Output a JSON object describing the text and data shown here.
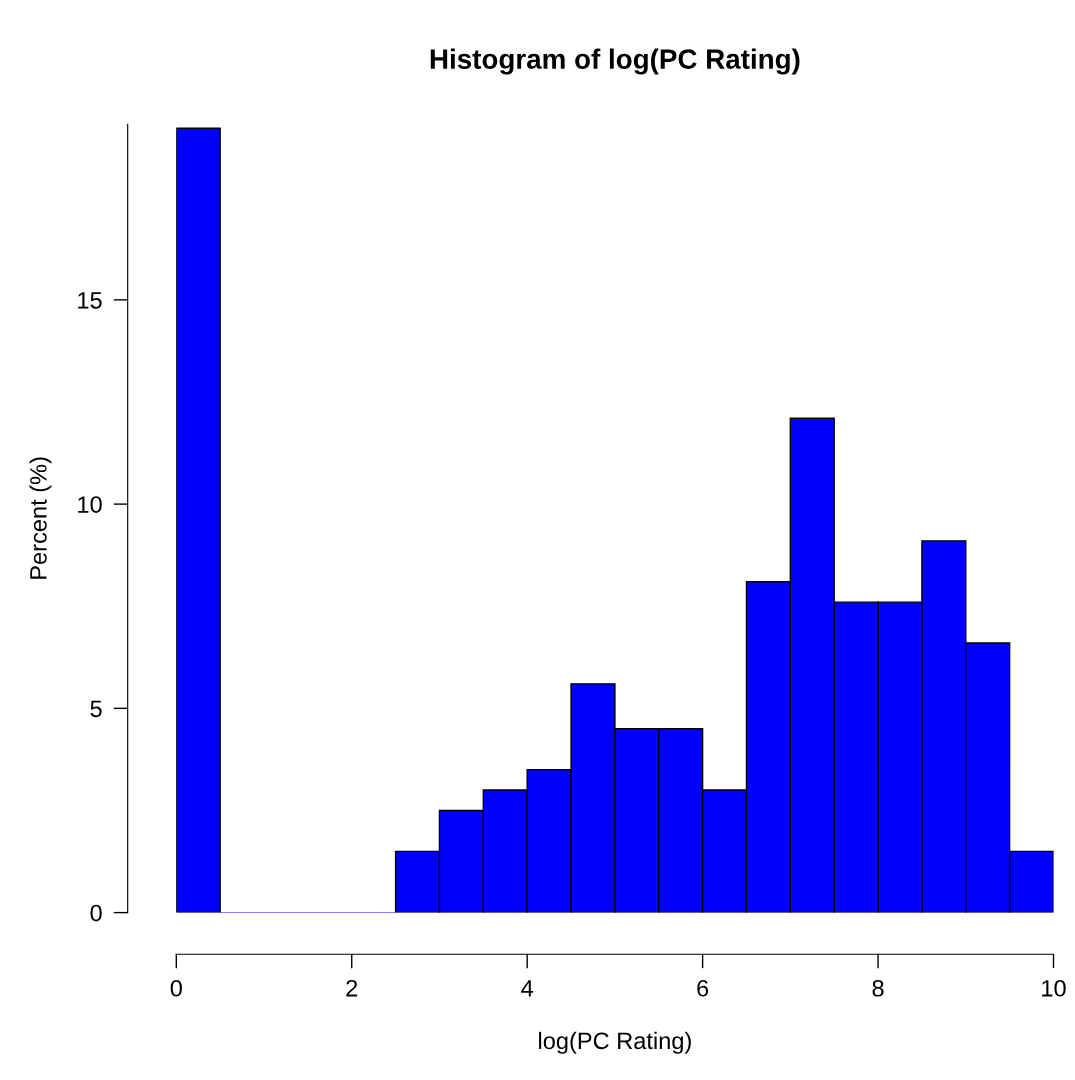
{
  "chart_data": {
    "type": "histogram",
    "title": "Histogram of log(PC Rating)",
    "xlabel": "log(PC Rating)",
    "ylabel": "Percent (%)",
    "bins": [
      0,
      0.5,
      1,
      1.5,
      2,
      2.5,
      3,
      3.5,
      4,
      4.5,
      5,
      5.5,
      6,
      6.5,
      7,
      7.5,
      8,
      8.5,
      9,
      9.5,
      10
    ],
    "values": [
      19.2,
      0,
      0,
      0,
      0,
      1.5,
      2.5,
      3.0,
      3.5,
      5.6,
      4.5,
      4.5,
      3.0,
      8.1,
      12.1,
      7.6,
      7.6,
      9.1,
      6.6,
      1.5
    ],
    "color": "#0000ff",
    "xlim": [
      0,
      10
    ],
    "ylim": [
      0,
      19.3
    ],
    "xticks": [
      0,
      2,
      4,
      6,
      8,
      10
    ],
    "yticks": [
      0,
      5,
      10,
      15
    ],
    "grid": false
  }
}
